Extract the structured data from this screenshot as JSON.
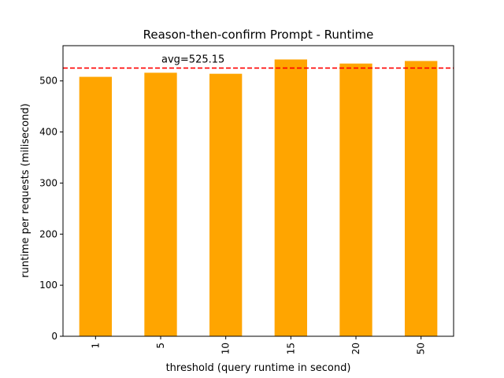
{
  "chart_data": {
    "type": "bar",
    "title": "Reason-then-confirm Prompt - Runtime",
    "xlabel": "threshold (query runtime in second)",
    "ylabel": "runtime per requests (milisecond)",
    "categories": [
      "1",
      "5",
      "10",
      "15",
      "20",
      "50"
    ],
    "values": [
      508,
      516,
      514,
      542,
      534,
      539
    ],
    "ylim": [
      0,
      569
    ],
    "yticks": [
      0,
      100,
      200,
      300,
      400,
      500
    ],
    "bar_color": "#FFA500",
    "reference_line": {
      "value": 525.15,
      "label": "avg=525.15",
      "color": "#FF0000",
      "style": "dashed"
    },
    "grid": false,
    "legend": "none"
  }
}
